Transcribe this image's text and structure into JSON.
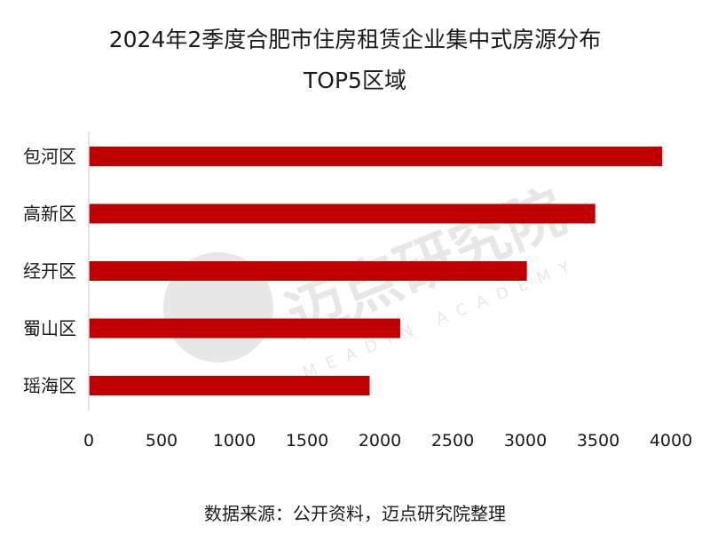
{
  "title": {
    "line1": "2024年2季度合肥市住房租赁企业集中式房源分布",
    "line2": "TOP5区域"
  },
  "source": "数据来源：公开资料，迈点研究院整理",
  "watermark": {
    "cn": "迈点研究院",
    "en": "MEADIN ACADEMY"
  },
  "colors": {
    "bar": "#c00000",
    "axis": "#d9d9d9",
    "text": "#1a1a1a"
  },
  "chart_data": {
    "type": "bar",
    "orientation": "horizontal",
    "categories": [
      "包河区",
      "高新区",
      "经开区",
      "蜀山区",
      "瑶海区"
    ],
    "values": [
      3940,
      3480,
      3010,
      2140,
      1930
    ],
    "xlim": [
      0,
      4000
    ],
    "xticks": [
      0,
      500,
      1000,
      1500,
      2000,
      2500,
      3000,
      3500,
      4000
    ],
    "grid": false,
    "legend": "none"
  }
}
